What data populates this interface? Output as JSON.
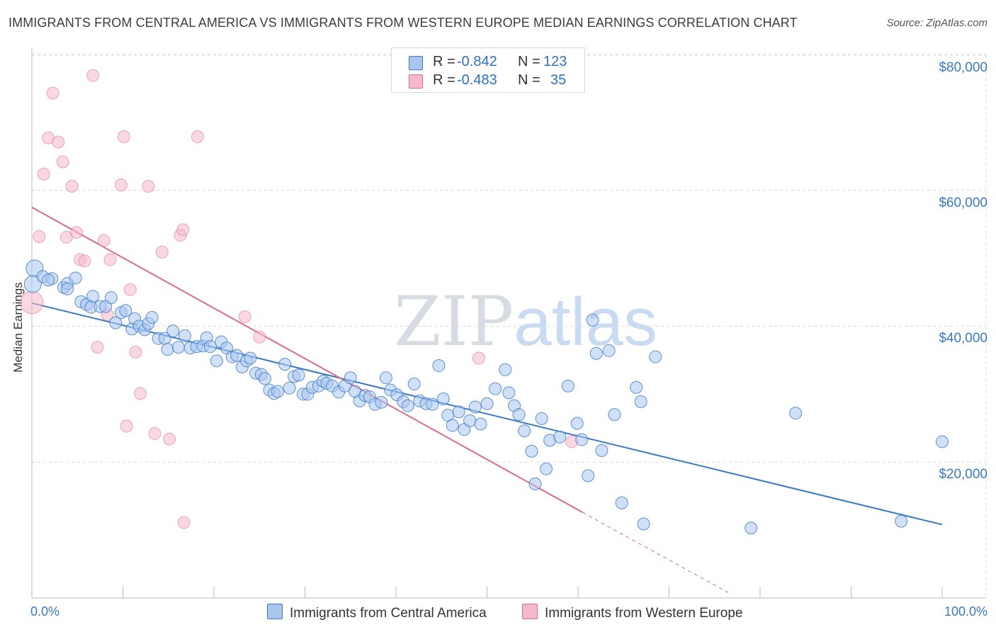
{
  "title": "IMMIGRANTS FROM CENTRAL AMERICA VS IMMIGRANTS FROM WESTERN EUROPE MEDIAN EARNINGS CORRELATION CHART",
  "source": "Source: ZipAtlas.com",
  "watermark": {
    "part1": "ZIP",
    "part2": "atlas"
  },
  "colors": {
    "blue": "#3a78c9",
    "blue_fill": "#a9c7ee",
    "pink": "#e06892",
    "pink_fill": "#f6b8cb",
    "grid": "#dcdcdc"
  },
  "stats": [
    {
      "r_label": "R =",
      "r_value": "-0.842",
      "n_label": "N =",
      "n_value": "123"
    },
    {
      "r_label": "R =",
      "r_value": "-0.483",
      "n_label": "N =",
      "n_value": "35"
    }
  ],
  "legend": [
    "Immigrants from Central America",
    "Immigrants from Western Europe"
  ],
  "chart_data": {
    "type": "scatter",
    "title": "IMMIGRANTS FROM CENTRAL AMERICA VS IMMIGRANTS FROM WESTERN EUROPE MEDIAN EARNINGS CORRELATION CHART",
    "xlabel": "",
    "ylabel": "Median Earnings",
    "xlim": [
      0,
      100
    ],
    "ylim": [
      0,
      82000
    ],
    "x_tick_labels": [
      "0.0%",
      "100.0%"
    ],
    "y_ticks": [
      20000,
      40000,
      60000,
      80000
    ],
    "y_tick_labels": [
      "$20,000",
      "$40,000",
      "$60,000",
      "$80,000"
    ],
    "grid": true,
    "series": [
      {
        "name": "Immigrants from Central America",
        "r": -0.842,
        "n": 123,
        "trend": {
          "x": [
            0,
            100
          ],
          "y": [
            43400,
            10800
          ]
        },
        "points": [
          [
            0.3,
            48500
          ],
          [
            0.1,
            46200
          ],
          [
            1.2,
            47300
          ],
          [
            2.2,
            47000
          ],
          [
            1.8,
            46800
          ],
          [
            3.5,
            45700
          ],
          [
            3.9,
            46300
          ],
          [
            4.8,
            47100
          ],
          [
            3.9,
            45500
          ],
          [
            5.4,
            43600
          ],
          [
            6.0,
            43200
          ],
          [
            6.7,
            44400
          ],
          [
            6.5,
            42800
          ],
          [
            7.5,
            42900
          ],
          [
            8.1,
            42900
          ],
          [
            8.7,
            44200
          ],
          [
            9.2,
            40500
          ],
          [
            9.8,
            42000
          ],
          [
            10.3,
            42300
          ],
          [
            11.0,
            39600
          ],
          [
            11.3,
            41100
          ],
          [
            11.8,
            40000
          ],
          [
            12.4,
            39500
          ],
          [
            12.8,
            40400
          ],
          [
            13.2,
            41300
          ],
          [
            13.9,
            38200
          ],
          [
            14.6,
            38200
          ],
          [
            14.9,
            36600
          ],
          [
            15.5,
            39300
          ],
          [
            16.1,
            36900
          ],
          [
            16.8,
            38600
          ],
          [
            17.4,
            36800
          ],
          [
            18.1,
            37000
          ],
          [
            18.8,
            37100
          ],
          [
            19.2,
            38300
          ],
          [
            19.6,
            37000
          ],
          [
            20.3,
            34900
          ],
          [
            20.8,
            37700
          ],
          [
            21.4,
            36800
          ],
          [
            22.0,
            35500
          ],
          [
            22.5,
            35700
          ],
          [
            23.1,
            34000
          ],
          [
            23.6,
            34900
          ],
          [
            24.0,
            35300
          ],
          [
            24.6,
            33100
          ],
          [
            25.2,
            32900
          ],
          [
            25.6,
            32300
          ],
          [
            26.1,
            30600
          ],
          [
            26.6,
            30100
          ],
          [
            27.0,
            30400
          ],
          [
            27.8,
            34400
          ],
          [
            28.3,
            30900
          ],
          [
            28.8,
            32600
          ],
          [
            29.3,
            32800
          ],
          [
            29.8,
            30000
          ],
          [
            30.3,
            30000
          ],
          [
            30.8,
            31000
          ],
          [
            31.5,
            31200
          ],
          [
            32.0,
            31900
          ],
          [
            32.4,
            31600
          ],
          [
            33.0,
            31200
          ],
          [
            33.7,
            30300
          ],
          [
            34.4,
            31200
          ],
          [
            35.0,
            32400
          ],
          [
            35.5,
            30400
          ],
          [
            36.0,
            29000
          ],
          [
            36.6,
            29800
          ],
          [
            37.1,
            29600
          ],
          [
            37.7,
            28500
          ],
          [
            38.4,
            28800
          ],
          [
            38.9,
            32400
          ],
          [
            39.4,
            30600
          ],
          [
            40.1,
            29900
          ],
          [
            40.8,
            28900
          ],
          [
            41.3,
            28300
          ],
          [
            42.0,
            31500
          ],
          [
            42.6,
            29000
          ],
          [
            43.3,
            28600
          ],
          [
            44.0,
            28500
          ],
          [
            44.7,
            34200
          ],
          [
            45.2,
            29300
          ],
          [
            45.7,
            26900
          ],
          [
            46.2,
            25400
          ],
          [
            46.9,
            27400
          ],
          [
            47.5,
            24800
          ],
          [
            48.1,
            26100
          ],
          [
            48.7,
            28100
          ],
          [
            49.3,
            25600
          ],
          [
            50.0,
            28600
          ],
          [
            50.9,
            30800
          ],
          [
            52.0,
            33600
          ],
          [
            52.4,
            30200
          ],
          [
            53.0,
            28300
          ],
          [
            53.5,
            27000
          ],
          [
            54.1,
            24600
          ],
          [
            54.9,
            21600
          ],
          [
            55.3,
            16800
          ],
          [
            56.0,
            26400
          ],
          [
            56.5,
            19000
          ],
          [
            56.9,
            23200
          ],
          [
            58.0,
            23700
          ],
          [
            58.9,
            31200
          ],
          [
            59.9,
            25700
          ],
          [
            60.4,
            23300
          ],
          [
            61.1,
            18000
          ],
          [
            61.6,
            40900
          ],
          [
            62.0,
            36000
          ],
          [
            62.6,
            21700
          ],
          [
            63.4,
            36400
          ],
          [
            64.0,
            27000
          ],
          [
            64.8,
            14000
          ],
          [
            66.4,
            31000
          ],
          [
            66.9,
            28900
          ],
          [
            67.2,
            10900
          ],
          [
            68.5,
            35500
          ],
          [
            79.0,
            10300
          ],
          [
            83.9,
            27200
          ],
          [
            95.5,
            11300
          ],
          [
            100.0,
            23000
          ]
        ]
      },
      {
        "name": "Immigrants from Western Europe",
        "r": -0.483,
        "n": 35,
        "trend": {
          "x": [
            0,
            60.5
          ],
          "y": [
            57500,
            12600
          ]
        },
        "trend_dashed": {
          "x": [
            60.5,
            76.5
          ],
          "y": [
            12600,
            800
          ]
        },
        "points": [
          [
            0.0,
            43500
          ],
          [
            0.8,
            53200
          ],
          [
            1.3,
            62400
          ],
          [
            1.8,
            67700
          ],
          [
            2.3,
            74300
          ],
          [
            2.9,
            67100
          ],
          [
            3.4,
            64200
          ],
          [
            3.8,
            53100
          ],
          [
            4.4,
            60600
          ],
          [
            4.9,
            53800
          ],
          [
            5.3,
            49800
          ],
          [
            5.8,
            49600
          ],
          [
            6.7,
            76900
          ],
          [
            7.2,
            36900
          ],
          [
            7.9,
            52600
          ],
          [
            8.3,
            41700
          ],
          [
            8.6,
            49800
          ],
          [
            9.8,
            60800
          ],
          [
            10.1,
            67900
          ],
          [
            10.4,
            25300
          ],
          [
            10.8,
            45400
          ],
          [
            11.4,
            36200
          ],
          [
            11.9,
            30100
          ],
          [
            12.8,
            60600
          ],
          [
            13.5,
            24200
          ],
          [
            14.3,
            50900
          ],
          [
            15.1,
            23400
          ],
          [
            16.3,
            53400
          ],
          [
            16.6,
            54200
          ],
          [
            16.7,
            11100
          ],
          [
            18.2,
            67900
          ],
          [
            23.4,
            41400
          ],
          [
            25.0,
            38400
          ],
          [
            49.1,
            35300
          ],
          [
            59.3,
            23000
          ]
        ]
      }
    ]
  }
}
